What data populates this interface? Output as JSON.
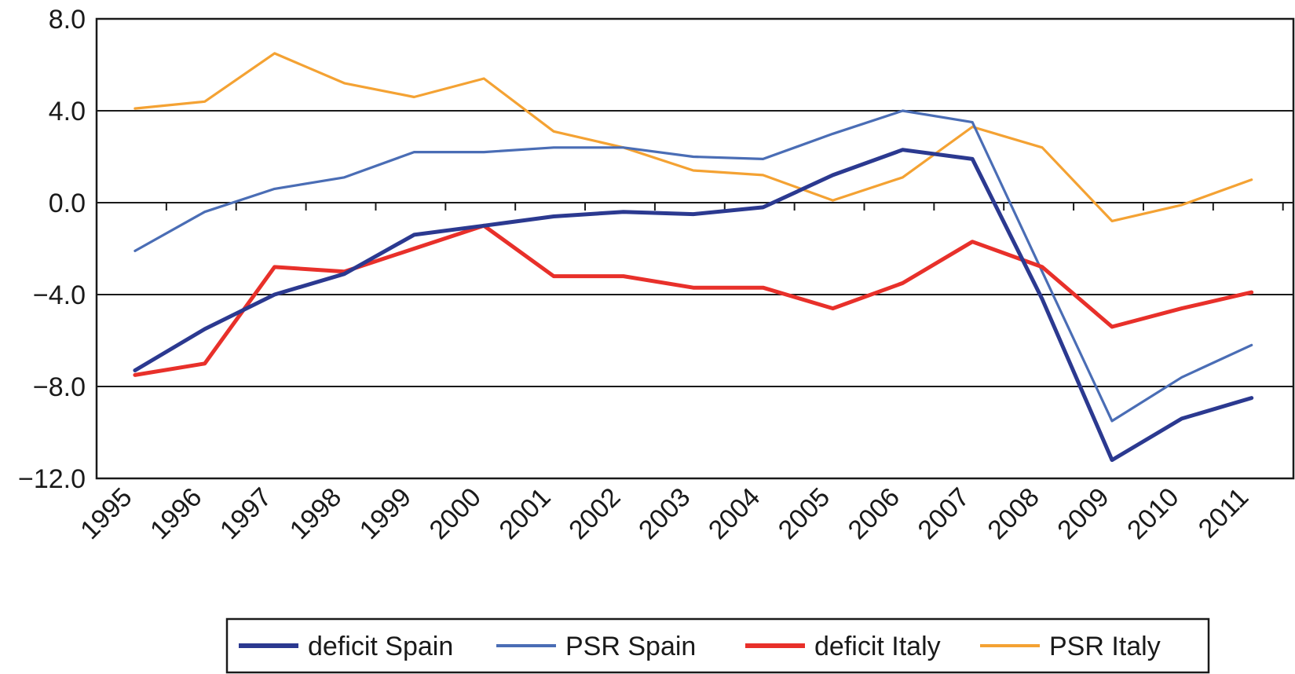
{
  "chart_data": {
    "type": "line",
    "title": "",
    "xlabel": "",
    "ylabel": "",
    "ylim": [
      -12.0,
      8.0
    ],
    "yticks": [
      "8.0",
      "4.0",
      "0.0",
      "−4.0",
      "−8.0",
      "−12.0"
    ],
    "ytick_values": [
      8,
      4,
      0,
      -4,
      -8,
      -12
    ],
    "categories": [
      "1995",
      "1996",
      "1997",
      "1998",
      "1999",
      "2000",
      "2001",
      "2002",
      "2003",
      "2004",
      "2005",
      "2006",
      "2007",
      "2008",
      "2009",
      "2010",
      "2011"
    ],
    "grid": "horizontal",
    "legend_position": "bottom",
    "series": [
      {
        "name": "deficit Spain",
        "color": "#2b3990",
        "width": "thick",
        "values": [
          -7.3,
          -5.5,
          -4.0,
          -3.1,
          -1.4,
          -1.0,
          -0.6,
          -0.4,
          -0.5,
          -0.2,
          1.2,
          2.3,
          1.9,
          -4.2,
          -11.2,
          -9.4,
          -8.5
        ]
      },
      {
        "name": "PSR Spain",
        "color": "#4a6db5",
        "width": "thin",
        "values": [
          -2.1,
          -0.4,
          0.6,
          1.1,
          2.2,
          2.2,
          2.4,
          2.4,
          2.0,
          1.9,
          3.0,
          4.0,
          3.5,
          -3.0,
          -9.5,
          -7.6,
          -6.2
        ]
      },
      {
        "name": "deficit Italy",
        "color": "#e8302a",
        "width": "thick",
        "values": [
          -7.5,
          -7.0,
          -2.8,
          -3.0,
          -2.0,
          -1.0,
          -3.2,
          -3.2,
          -3.7,
          -3.7,
          -4.6,
          -3.5,
          -1.7,
          -2.8,
          -5.4,
          -4.6,
          -3.9
        ]
      },
      {
        "name": "PSR Italy",
        "color": "#f4a233",
        "width": "thin",
        "values": [
          4.1,
          4.4,
          6.5,
          5.2,
          4.6,
          5.4,
          3.1,
          2.4,
          1.4,
          1.2,
          0.1,
          1.1,
          3.3,
          2.4,
          -0.8,
          -0.1,
          1.0
        ]
      }
    ]
  }
}
